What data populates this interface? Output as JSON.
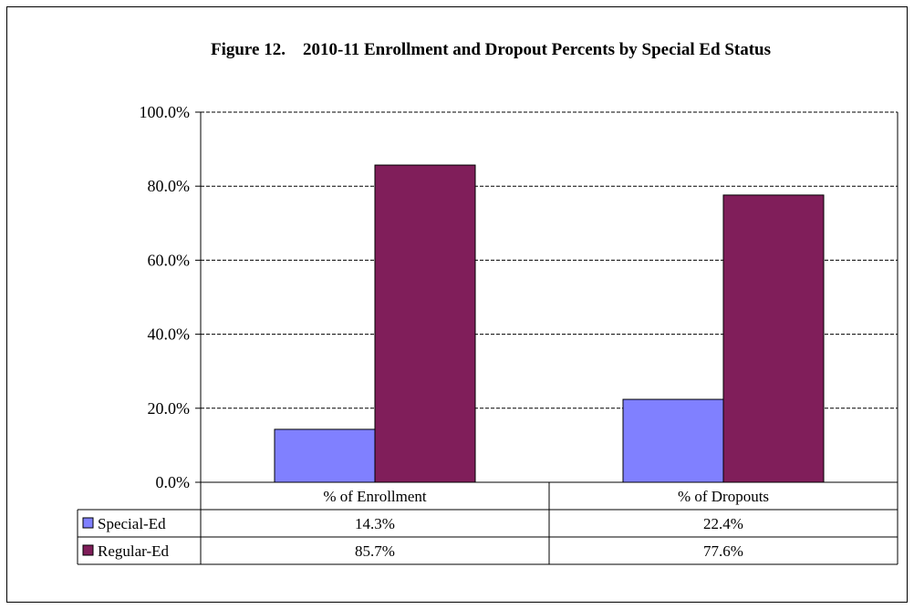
{
  "chart_data": {
    "type": "bar",
    "title": "Figure 12.    2010-11 Enrollment and Dropout Percents by Special Ed Status",
    "categories": [
      "% of Enrollment",
      "% of Dropouts"
    ],
    "series": [
      {
        "name": "Special-Ed",
        "values": [
          14.3,
          22.4
        ],
        "labels": [
          "14.3%",
          "22.4%"
        ],
        "color": "#8080ff"
      },
      {
        "name": "Regular-Ed",
        "values": [
          85.7,
          77.6
        ],
        "labels": [
          "85.7%",
          "77.6%"
        ],
        "color": "#801e5a"
      }
    ],
    "ylim": [
      0,
      100
    ],
    "yticks": [
      "0.0%",
      "20.0%",
      "40.0%",
      "60.0%",
      "80.0%",
      "100.0%"
    ],
    "grid": true,
    "legend": "data-table"
  }
}
